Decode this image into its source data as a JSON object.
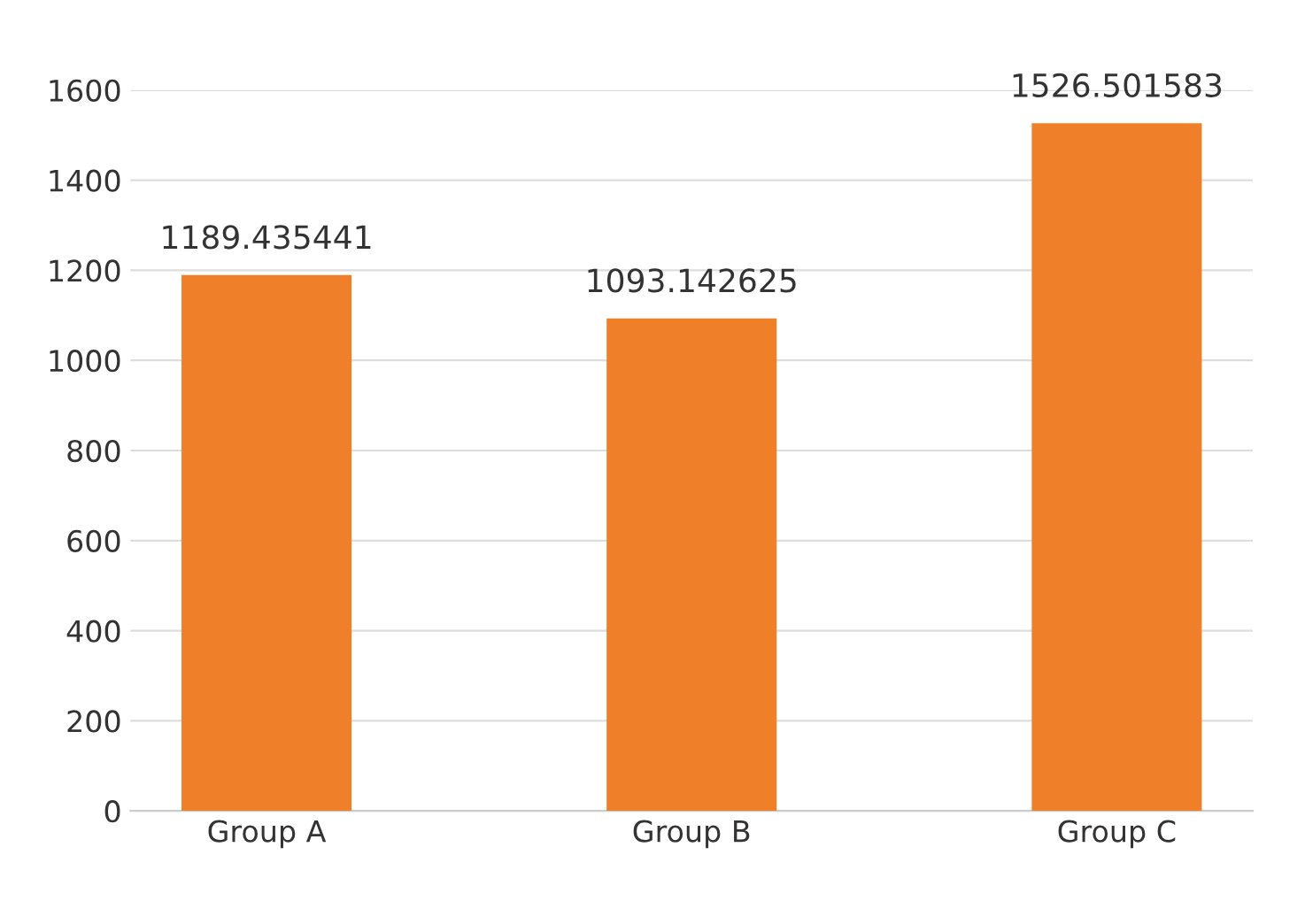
{
  "chart_data": {
    "type": "bar",
    "categories": [
      "Group A",
      "Group B",
      "Group C"
    ],
    "values": [
      1189.435441,
      1093.142625,
      1526.501583
    ],
    "color": "#f07f2a",
    "ylim": [
      0,
      1600
    ],
    "yticks": [
      0,
      200,
      400,
      600,
      800,
      1000,
      1200,
      1400,
      1600
    ],
    "grid": "y",
    "data_labels": true
  }
}
